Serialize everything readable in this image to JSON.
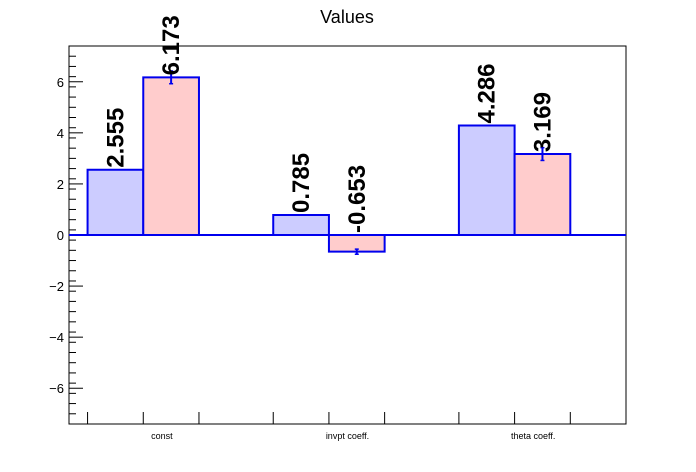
{
  "chart_data": {
    "type": "bar",
    "title": "Values",
    "xlabel": "",
    "ylabel": "",
    "categories": [
      "const",
      "invpt coeff.",
      "theta coeff."
    ],
    "series": [
      {
        "values": [
          2.555,
          0.785,
          4.286
        ],
        "value_labels": [
          "2.555",
          "0.785",
          "4.286"
        ],
        "color": "#ccccff",
        "errors": [
          0,
          0,
          0
        ]
      },
      {
        "values": [
          6.173,
          -0.653,
          3.169
        ],
        "value_labels": [
          "6.173",
          "-0.653",
          "3.169"
        ],
        "color": "#ffcccc",
        "errors": [
          0.25,
          0.1,
          0.25
        ]
      }
    ],
    "ylim": [
      -7.4,
      7.4
    ],
    "yticks": [
      -6,
      -4,
      -2,
      0,
      2,
      4,
      6
    ],
    "ytick_labels": [
      "−6",
      "−4",
      "−2",
      "0",
      "2",
      "4",
      "6"
    ],
    "bar_edge_color": "#0000ee",
    "grid": false,
    "legend": "none"
  }
}
